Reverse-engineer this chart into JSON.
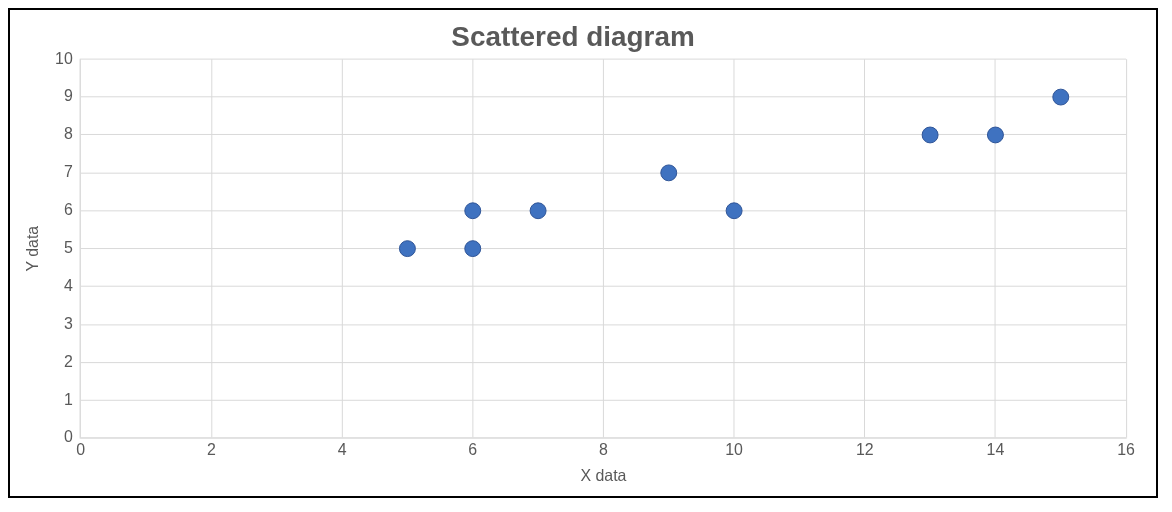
{
  "chart_data": {
    "type": "scatter",
    "title": "Scattered diagram",
    "xlabel": "X data",
    "ylabel": "Y data",
    "x": [
      5,
      6,
      6,
      7,
      9,
      10,
      13,
      14,
      15
    ],
    "values": [
      5,
      6,
      5,
      6,
      7,
      6,
      8,
      8,
      9
    ],
    "color": "#3f72c0",
    "xlim": [
      0,
      16
    ],
    "xticks": [
      0,
      2,
      4,
      6,
      8,
      10,
      12,
      14,
      16
    ],
    "ylim": [
      0,
      10
    ],
    "yticks": [
      0,
      1,
      2,
      3,
      4,
      5,
      6,
      7,
      8,
      9,
      10
    ],
    "grid": true,
    "legend": false,
    "marker": "circle"
  }
}
